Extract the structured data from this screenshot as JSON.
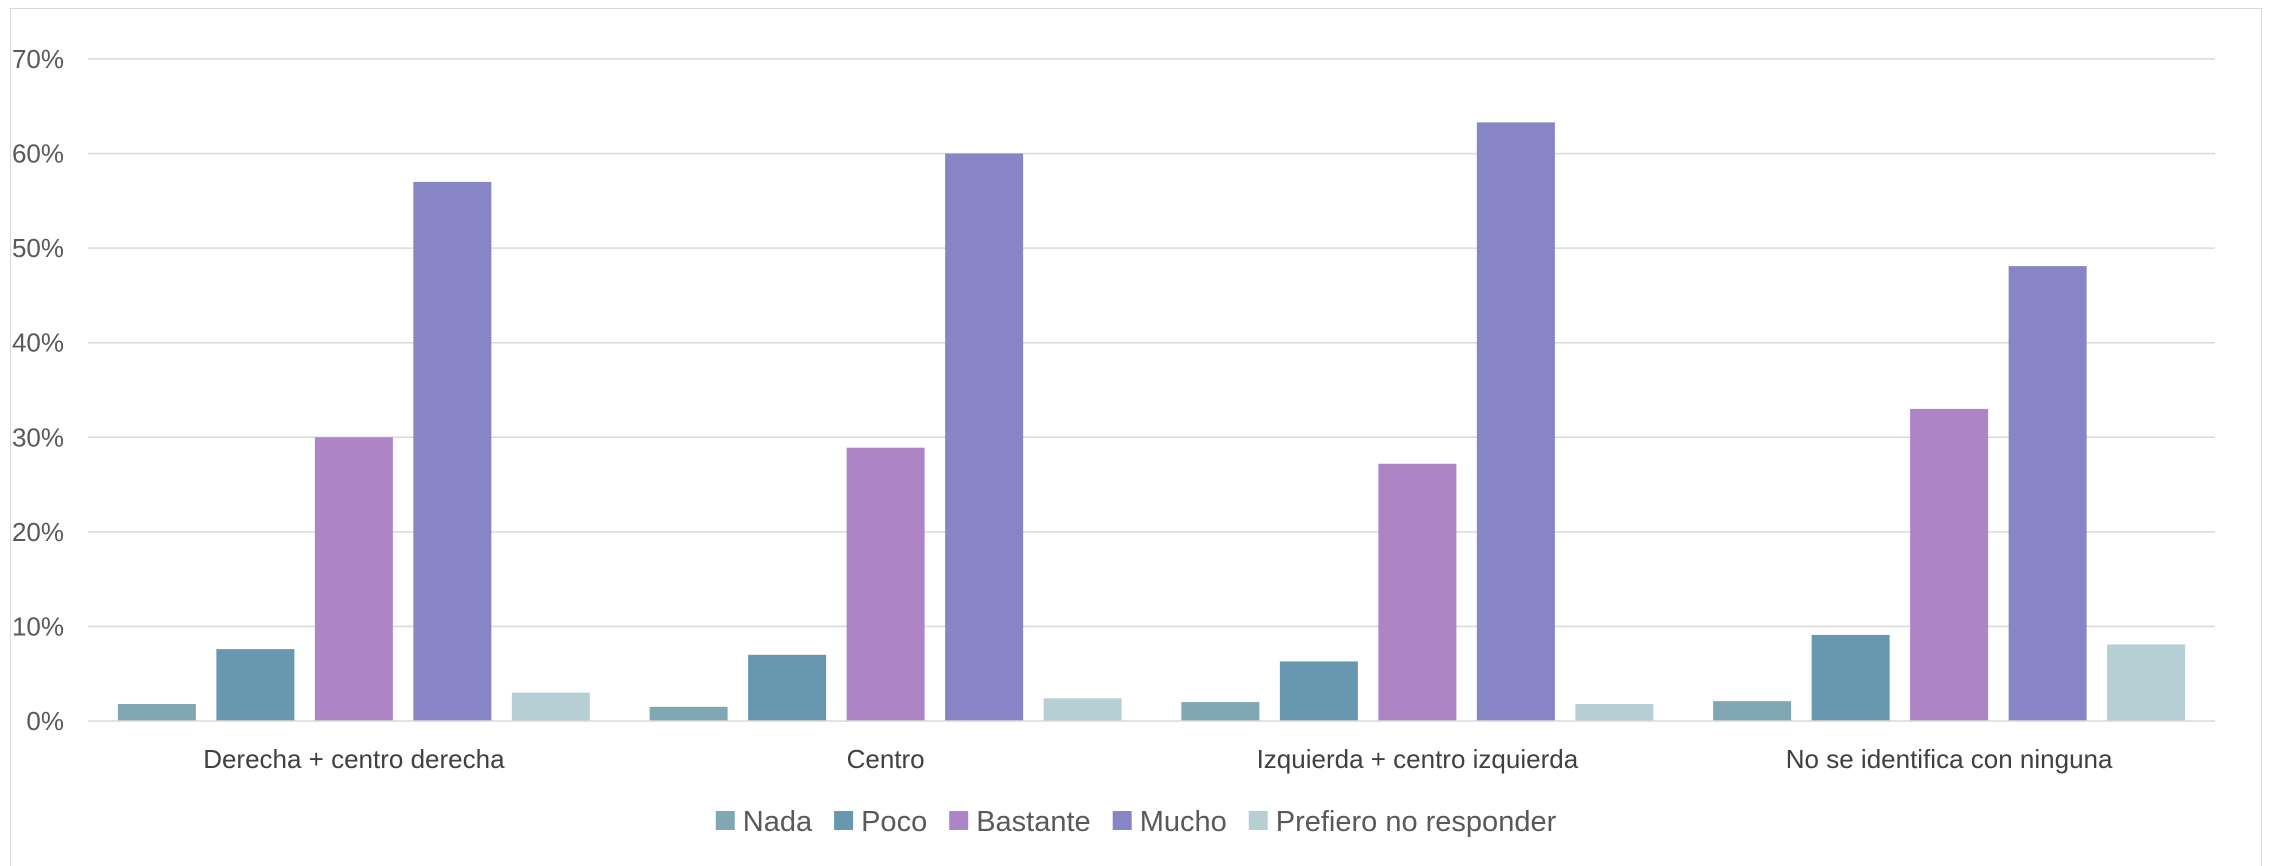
{
  "chart_data": {
    "type": "bar",
    "title": "",
    "xlabel": "",
    "ylabel": "",
    "ylim": [
      0,
      70
    ],
    "yticks": [
      0,
      10,
      20,
      30,
      40,
      50,
      60,
      70
    ],
    "y_tick_format": "percent",
    "grid": true,
    "legend_position": "bottom",
    "categories": [
      "Derecha + centro derecha",
      "Centro",
      "Izquierda + centro izquierda",
      "No se identifica con ninguna"
    ],
    "series": [
      {
        "name": "Nada",
        "color": "#7fa8b4",
        "values": [
          1.8,
          1.5,
          2.0,
          2.1
        ]
      },
      {
        "name": "Poco",
        "color": "#6898b0",
        "values": [
          7.6,
          7.0,
          6.3,
          9.1
        ]
      },
      {
        "name": "Bastante",
        "color": "#ad84c6",
        "values": [
          30.0,
          28.9,
          27.2,
          33.0
        ]
      },
      {
        "name": "Mucho",
        "color": "#8785c6",
        "values": [
          57.0,
          60.0,
          63.3,
          48.1
        ]
      },
      {
        "name": "Prefiero no responder",
        "color": "#b6cfd5",
        "values": [
          3.0,
          2.4,
          1.8,
          8.1
        ]
      }
    ]
  }
}
